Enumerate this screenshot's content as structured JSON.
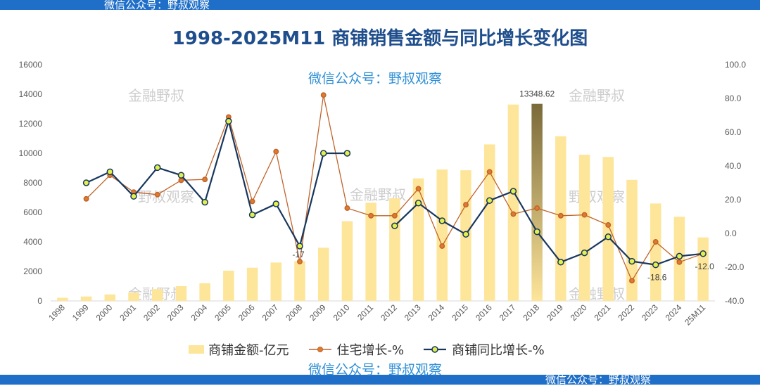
{
  "banner": {
    "top_text": "微信公众号：野叔观察",
    "bottom_text": "微信公众号：野叔观察"
  },
  "title": "1998-2025M11 商铺销售金额与同比增长变化图",
  "watermarks": {
    "wechat_top": "微信公众号：野叔观察",
    "wechat_bottom": "微信公众号：野叔观察",
    "brand": "金融野叔",
    "brand_partial": "野叔观察"
  },
  "colors": {
    "bar": "#fde59a",
    "bar_highlight": "#b89c4f",
    "residential_line": "#c0642a",
    "residential_marker": "#e07a2e",
    "shop_line": "#17375e",
    "shop_marker": "#e3f04a"
  },
  "chart_data": {
    "type": "bar",
    "categories": [
      "1998",
      "1999",
      "2000",
      "2001",
      "2002",
      "2003",
      "2004",
      "2005",
      "2006",
      "2007",
      "2008",
      "2009",
      "2010",
      "2011",
      "2012",
      "2013",
      "2014",
      "2015",
      "2016",
      "2017",
      "2018",
      "2019",
      "2020",
      "2021",
      "2022",
      "2023",
      "2024",
      "25M11"
    ],
    "series": [
      {
        "name": "商铺金额-亿元",
        "type": "bar",
        "axis": "left",
        "values": [
          210,
          300,
          440,
          560,
          800,
          1000,
          1200,
          2050,
          2250,
          2600,
          2700,
          3600,
          5400,
          6650,
          6950,
          8300,
          8900,
          8850,
          10600,
          13300,
          13348.62,
          11150,
          9900,
          9750,
          8200,
          6600,
          5700,
          4300
        ]
      },
      {
        "name": "住宅增长-%",
        "type": "line",
        "axis": "right",
        "values": [
          null,
          20.5,
          34.5,
          24.5,
          23.0,
          31.5,
          32.0,
          69.0,
          19.0,
          48.5,
          -16.7,
          82.0,
          15.0,
          10.5,
          10.5,
          26.5,
          -7.5,
          17.0,
          36.5,
          11.5,
          15.0,
          10.5,
          11.0,
          5.0,
          -28.0,
          -5.0,
          -17.0,
          -12.0
        ]
      },
      {
        "name": "商铺同比增长-%",
        "type": "line",
        "axis": "right",
        "values": [
          null,
          30.0,
          36.5,
          22.0,
          39.0,
          34.5,
          18.5,
          66.5,
          11.0,
          17.5,
          -7.5,
          47.5,
          47.5,
          null,
          4.5,
          18.0,
          7.5,
          -0.5,
          19.5,
          25.0,
          1.0,
          -17.0,
          -11.5,
          -2.0,
          -16.5,
          -18.6,
          -13.5,
          -12.0
        ]
      }
    ],
    "data_labels": [
      {
        "series": 0,
        "index": 20,
        "text": "13348.62"
      },
      {
        "series": 1,
        "index": 10,
        "text": "-17"
      },
      {
        "series": 2,
        "index": 25,
        "text": "-18.6"
      },
      {
        "series": 2,
        "index": 27,
        "text": "-12.0"
      }
    ],
    "left_axis": {
      "min": 0,
      "max": 16000,
      "step": 2000,
      "ticks": [
        "0",
        "2000",
        "4000",
        "6000",
        "8000",
        "10000",
        "12000",
        "14000",
        "16000"
      ]
    },
    "right_axis": {
      "min": -40,
      "max": 100,
      "step": 20,
      "ticks": [
        "-40.0",
        "-20.0",
        "0.0",
        "20.0",
        "40.0",
        "60.0",
        "80.0",
        "100.0"
      ]
    },
    "grid": false,
    "legend": "bottom"
  }
}
